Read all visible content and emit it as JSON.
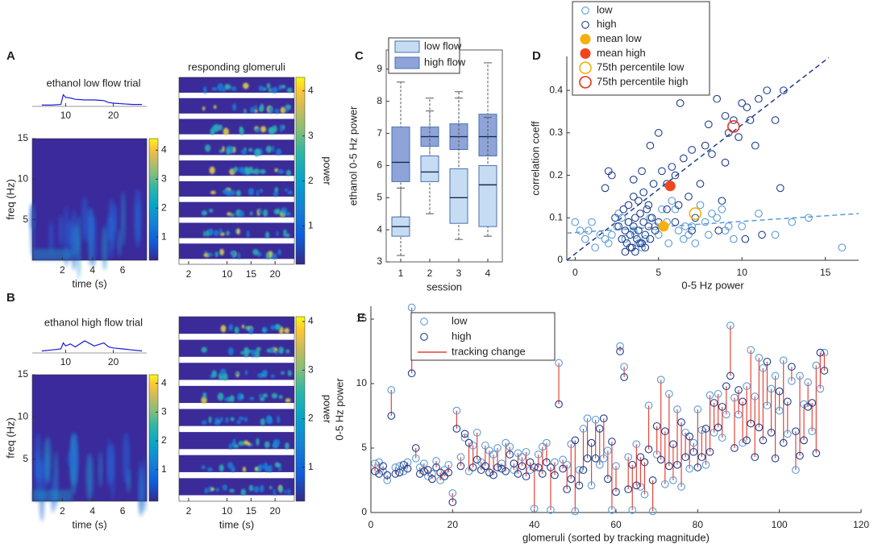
{
  "chart_data": [
    {
      "type": "line",
      "panel": "A",
      "title": "ethanol low flow trial",
      "color": "#1a1adb",
      "x": [
        5,
        7,
        9,
        9.5,
        10,
        11,
        12,
        14,
        16,
        18,
        19,
        20,
        22,
        24,
        26
      ],
      "values": [
        0.1,
        0.1,
        0.15,
        0.9,
        0.7,
        0.65,
        0.55,
        0.5,
        0.5,
        0.45,
        0.3,
        0.25,
        0.2,
        0.15,
        0.15
      ],
      "xlim": [
        3,
        27
      ],
      "ylim": [
        0,
        1
      ],
      "xticks": [
        10,
        20
      ]
    },
    {
      "type": "heatmap",
      "xlabel": "time (s)",
      "ylabel": "freq (Hz)",
      "xlim": [
        0,
        7.6
      ],
      "ylim": [
        0,
        15
      ],
      "xticks": [
        2,
        4,
        6
      ],
      "yticks": [
        5,
        10,
        15
      ],
      "clim": [
        0.2,
        4.4
      ],
      "cticks": [
        1,
        2,
        3,
        4
      ]
    },
    {
      "type": "heatmap",
      "title": "responding glomeruli",
      "rows": 9,
      "xlim": [
        0,
        24
      ],
      "xticks": [
        2,
        10,
        15,
        20
      ],
      "clim": [
        0.15,
        4.3
      ],
      "cticks": [
        1,
        2,
        3,
        4
      ],
      "colorbar_label": "power"
    },
    {
      "type": "line",
      "panel": "B",
      "title": "ethanol high flow trial",
      "color": "#1a1adb",
      "x": [
        5,
        7,
        9,
        9.5,
        10,
        11,
        12,
        14,
        16,
        18,
        19,
        20,
        22,
        24,
        26
      ],
      "values": [
        0.1,
        0.15,
        0.2,
        0.5,
        0.35,
        0.45,
        0.3,
        0.6,
        0.35,
        0.5,
        0.3,
        0.25,
        0.2,
        0.15,
        0.1
      ],
      "xlim": [
        3,
        27
      ],
      "ylim": [
        0,
        1
      ],
      "xticks": [
        10,
        20
      ]
    },
    {
      "type": "heatmap",
      "xlabel": "time (s)",
      "ylabel": "freq (Hz)",
      "xlim": [
        0,
        7.6
      ],
      "ylim": [
        0,
        15
      ],
      "xticks": [
        2,
        4,
        6
      ],
      "yticks": [
        5,
        10,
        15
      ],
      "clim": [
        -0.1,
        4.3
      ],
      "cticks": [
        1,
        2,
        3,
        4
      ]
    },
    {
      "type": "heatmap",
      "rows": 8,
      "xlabel": "time (s)",
      "xlim": [
        0,
        24
      ],
      "xticks": [
        2,
        10,
        15,
        20
      ],
      "clim": [
        0.3,
        4.1
      ],
      "cticks": [
        1,
        2,
        3,
        4
      ],
      "colorbar_label": "power"
    },
    {
      "type": "box",
      "panel": "C",
      "xlabel": "session",
      "ylabel": "ethanol 0-5 Hz power",
      "xlim": [
        0.5,
        4.5
      ],
      "xticks": [
        1,
        2,
        3,
        4
      ],
      "ylim": [
        3,
        9.6
      ],
      "yticks": [
        3,
        4,
        5,
        6,
        7,
        8,
        9
      ],
      "legend": "upper left",
      "series": [
        {
          "name": "high flow",
          "color": "#8ea4d8",
          "stats": [
            [
              4.4,
              5.5,
              6.1,
              7.2,
              8.6
            ],
            [
              5.6,
              6.6,
              6.9,
              7.2,
              8.1
            ],
            [
              5.2,
              6.5,
              6.9,
              7.3,
              8.3
            ],
            [
              4.3,
              6.3,
              6.9,
              7.6,
              9.2
            ]
          ]
        },
        {
          "name": "low flow",
          "color": "#c5dcf3",
          "stats": [
            [
              3.2,
              3.8,
              4.1,
              4.4,
              5.3
            ],
            [
              4.5,
              5.5,
              5.8,
              6.3,
              7.7
            ],
            [
              3.7,
              4.2,
              5.0,
              5.9,
              8.1
            ],
            [
              3.8,
              4.1,
              5.4,
              6.0,
              7.5
            ]
          ]
        }
      ]
    },
    {
      "type": "scatter",
      "panel": "D",
      "xlabel": "0-5 Hz power",
      "ylabel": "correlation coeff",
      "xlim": [
        -0.5,
        17
      ],
      "ylim": [
        0,
        0.48
      ],
      "xticks": [
        0,
        5,
        10,
        15
      ],
      "yticks": [
        0,
        0.1,
        0.2,
        0.3,
        0.4
      ],
      "legend": "upper left",
      "series": [
        {
          "name": "low",
          "color": "#5b9bd5",
          "marker": "open",
          "x": [
            0.3,
            0.6,
            1.0,
            1.5,
            2.0,
            2.5,
            3.0,
            3.5,
            4.0,
            4.5,
            5.0,
            5.5,
            6.0,
            6.5,
            7.0,
            7.5,
            8.0,
            8.5,
            9.0,
            9.5,
            10.0,
            11.0,
            12.0,
            13.0,
            14.0,
            16.0,
            1.2,
            2.2,
            3.2,
            4.2,
            5.2,
            6.2,
            7.2,
            8.2,
            9.2,
            2.8,
            3.8,
            4.8,
            5.8,
            6.8,
            7.8,
            0.0,
            0.8,
            1.8,
            2.6,
            3.6,
            4.6,
            5.6,
            6.6,
            8.8
          ],
          "values": [
            0.07,
            0.05,
            0.09,
            0.06,
            0.04,
            0.08,
            0.05,
            0.07,
            0.03,
            0.1,
            0.06,
            0.09,
            0.12,
            0.05,
            0.08,
            0.13,
            0.06,
            0.1,
            0.07,
            0.05,
            0.08,
            0.11,
            0.06,
            0.09,
            0.1,
            0.03,
            0.03,
            0.06,
            0.09,
            0.05,
            0.12,
            0.07,
            0.04,
            0.11,
            0.08,
            0.1,
            0.04,
            0.08,
            0.14,
            0.06,
            0.09,
            0.09,
            0.07,
            0.05,
            0.11,
            0.06,
            0.1,
            0.04,
            0.08,
            0.12
          ]
        },
        {
          "name": "high",
          "color": "#1f3d8c",
          "marker": "open",
          "x": [
            2.8,
            3.0,
            3.1,
            3.2,
            3.3,
            3.4,
            3.5,
            3.6,
            3.7,
            3.8,
            3.9,
            4.0,
            4.1,
            4.2,
            4.3,
            4.4,
            4.5,
            4.6,
            4.8,
            5.0,
            2.9,
            3.2,
            3.5,
            3.8,
            4.1,
            4.4,
            4.7,
            3.0,
            3.3,
            3.6,
            3.9,
            4.2,
            2.6,
            2.4,
            5.2,
            5.5,
            5.8,
            6.0,
            6.5,
            7.0,
            7.5,
            8.0,
            8.5,
            9.0,
            9.2,
            9.5,
            10.0,
            10.3,
            10.5,
            10.8,
            11.0,
            11.5,
            12.0,
            12.5,
            9.8,
            9.0,
            8.2,
            7.8,
            6.8,
            6.2,
            5.0,
            4.5,
            4.0,
            3.5,
            5.5,
            6.0,
            7.2,
            8.8,
            10.2,
            11.2,
            12.3,
            8.6,
            7.0,
            6.3,
            2.2,
            2.0,
            1.8
          ],
          "values": [
            0.05,
            0.07,
            0.04,
            0.09,
            0.06,
            0.03,
            0.08,
            0.1,
            0.05,
            0.07,
            0.11,
            0.04,
            0.09,
            0.06,
            0.12,
            0.08,
            0.05,
            0.1,
            0.07,
            0.09,
            0.12,
            0.13,
            0.15,
            0.14,
            0.16,
            0.13,
            0.18,
            0.02,
            0.03,
            0.02,
            0.04,
            0.03,
            0.08,
            0.1,
            0.21,
            0.18,
            0.22,
            0.2,
            0.24,
            0.26,
            0.18,
            0.32,
            0.38,
            0.34,
            0.3,
            0.33,
            0.37,
            0.36,
            0.33,
            0.27,
            0.38,
            0.4,
            0.33,
            0.4,
            0.29,
            0.23,
            0.25,
            0.27,
            0.15,
            0.13,
            0.3,
            0.27,
            0.21,
            0.19,
            0.12,
            0.09,
            0.1,
            0.14,
            0.05,
            0.06,
            0.17,
            0.07,
            0.07,
            0.37,
            0.2,
            0.21,
            0.17
          ]
        },
        {
          "name": "mean low",
          "color": "#f5b00f",
          "marker": "filled",
          "x": [
            5.3
          ],
          "values": [
            0.08
          ]
        },
        {
          "name": "mean high",
          "color": "#f0461e",
          "marker": "filled",
          "x": [
            5.7
          ],
          "values": [
            0.175
          ]
        },
        {
          "name": "75th percentile low",
          "color": "#f5b00f",
          "marker": "open-large",
          "x": [
            7.2
          ],
          "values": [
            0.11
          ]
        },
        {
          "name": "75th percentile high",
          "color": "#e8301a",
          "marker": "open-large",
          "x": [
            9.5
          ],
          "values": [
            0.315
          ]
        }
      ],
      "fits": [
        {
          "color": "#5b9bd5",
          "x": [
            -0.5,
            17
          ],
          "values": [
            0.064,
            0.11
          ]
        },
        {
          "color": "#1f3d8c",
          "x": [
            -0.5,
            15.2
          ],
          "values": [
            0,
            0.477
          ]
        }
      ]
    },
    {
      "type": "scatter",
      "panel": "E",
      "xlabel": "glomeruli (sorted by tracking magnitude)",
      "ylabel": "0-5 Hz power",
      "xlim": [
        0,
        120
      ],
      "xticks": [
        0,
        20,
        40,
        60,
        80,
        100,
        120
      ],
      "ylim": [
        0,
        16
      ],
      "yticks": [
        0,
        5,
        10,
        15
      ],
      "legend": "upper left",
      "link": {
        "name": "tracking change",
        "color": "#e8443a"
      },
      "x": [
        1,
        2,
        3,
        4,
        5,
        6,
        7,
        8,
        9,
        10,
        11,
        12,
        13,
        14,
        15,
        16,
        17,
        18,
        19,
        20,
        21,
        22,
        23,
        24,
        25,
        26,
        27,
        28,
        29,
        30,
        31,
        32,
        33,
        34,
        35,
        36,
        37,
        38,
        39,
        40,
        41,
        42,
        43,
        44,
        45,
        46,
        47,
        48,
        49,
        50,
        51,
        52,
        53,
        54,
        55,
        56,
        57,
        58,
        59,
        60,
        61,
        62,
        63,
        64,
        65,
        66,
        67,
        68,
        69,
        70,
        71,
        72,
        73,
        74,
        75,
        76,
        77,
        78,
        79,
        80,
        81,
        82,
        83,
        84,
        85,
        86,
        87,
        88,
        89,
        90,
        91,
        92,
        93,
        94,
        95,
        96,
        97,
        98,
        99,
        100,
        101,
        102,
        103,
        104,
        105,
        106,
        107,
        108,
        109,
        110,
        111
      ],
      "series": [
        {
          "name": "low",
          "color": "#5b9bd5",
          "values": [
            3.8,
            3.9,
            3.2,
            2.5,
            9.5,
            3.5,
            3.6,
            3.2,
            3.9,
            15.9,
            4.2,
            3.5,
            3.8,
            2.8,
            3.0,
            4.0,
            2.5,
            3.3,
            3.7,
            1.5,
            7.9,
            4.3,
            5.8,
            3.2,
            5.2,
            6.2,
            3.9,
            5.2,
            4.8,
            4.5,
            5.0,
            3.8,
            5.4,
            5.1,
            3.3,
            4.6,
            4.3,
            4.7,
            3.3,
            0.3,
            4.5,
            5.1,
            5.4,
            0.2,
            3.9,
            11.6,
            4.1,
            3.7,
            5.3,
            0.1,
            3.3,
            6.5,
            7.3,
            2.1,
            7.2,
            3.7,
            4.2,
            4.8,
            0.2,
            3.6,
            12.9,
            11.3,
            4.3,
            0.2,
            5.3,
            2.0,
            1.4,
            8.3,
            0.1,
            4.5,
            10.3,
            2.2,
            9.2,
            2.5,
            8.0,
            2.0,
            6.2,
            3.4,
            5.4,
            8.0,
            6.4,
            3.7,
            9.1,
            6.2,
            9.2,
            5.8,
            7.6,
            14.5,
            8.9,
            7.6,
            5.4,
            9.8,
            12.6,
            9.0,
            12.0,
            11.2,
            8.3,
            9.6,
            10.6,
            7.9,
            11.8,
            6.1,
            10.2,
            3.3,
            10.6,
            8.4,
            10.1,
            6.3,
            11.4,
            9.6,
            12.4
          ]
        },
        {
          "name": "high",
          "color": "#1f3d8c",
          "values": [
            3.2,
            3.0,
            3.6,
            2.9,
            7.5,
            3.0,
            3.1,
            3.7,
            3.4,
            10.8,
            5.0,
            3.0,
            3.2,
            3.3,
            2.6,
            3.5,
            3.1,
            2.8,
            3.1,
            0.8,
            6.5,
            3.6,
            6.1,
            5.4,
            3.5,
            4.1,
            3.3,
            3.6,
            3.1,
            2.9,
            3.5,
            3.4,
            3.2,
            4.5,
            3.8,
            3.0,
            3.6,
            2.8,
            3.9,
            3.5,
            3.5,
            3.0,
            3.9,
            3.5,
            2.9,
            8.4,
            3.4,
            1.8,
            2.6,
            5.6,
            2.1,
            3.3,
            4.2,
            5.4,
            4.2,
            6.5,
            7.3,
            2.6,
            5.5,
            1.6,
            12.5,
            10.5,
            1.8,
            3.7,
            2.1,
            4.3,
            3.9,
            4.9,
            2.5,
            6.7,
            4.1,
            6.3,
            3.6,
            5.3,
            3.7,
            7.0,
            4.3,
            5.9,
            4.7,
            3.5,
            4.3,
            6.5,
            4.7,
            8.5,
            6.6,
            8.2,
            9.8,
            10.6,
            5.0,
            9.5,
            8.6,
            5.6,
            6.9,
            4.3,
            6.6,
            5.6,
            11.7,
            6.2,
            4.2,
            9.4,
            5.4,
            8.6,
            11.3,
            6.3,
            4.4,
            5.6,
            8.2,
            8.5,
            4.6,
            12.4,
            11.0
          ]
        }
      ]
    }
  ]
}
